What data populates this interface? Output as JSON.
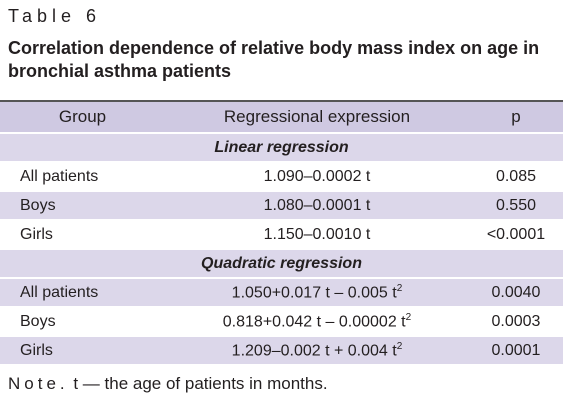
{
  "header": {
    "label": "Table 6",
    "title": "Correlation dependence of relative body mass index on age in bronchial asthma patients"
  },
  "table": {
    "columns": [
      "Group",
      "Regressional expression",
      "p"
    ],
    "sections": [
      {
        "title": "Linear regression",
        "rows": [
          [
            "All patients",
            {
              "text": "1.090–0.0002 t"
            },
            "0.085"
          ],
          [
            "Boys",
            {
              "text": "1.080–0.0001 t"
            },
            "0.550"
          ],
          [
            "Girls",
            {
              "text": "1.150–0.0010 t"
            },
            "<0.0001"
          ]
        ]
      },
      {
        "title": "Quadratic regression",
        "rows": [
          [
            "All patients",
            {
              "text": "1.050+0.017 t – 0.005 t",
              "sup": "2"
            },
            "0.0040"
          ],
          [
            "Boys",
            {
              "text": "0.818+0.042 t – 0.00002 t",
              "sup": "2"
            },
            "0.0003"
          ],
          [
            "Girls",
            {
              "text": "1.209–0.002 t + 0.004 t",
              "sup": "2"
            },
            "0.0001"
          ]
        ]
      }
    ]
  },
  "note": {
    "label": "Note.",
    "text": " t — the age of patients in months."
  }
}
